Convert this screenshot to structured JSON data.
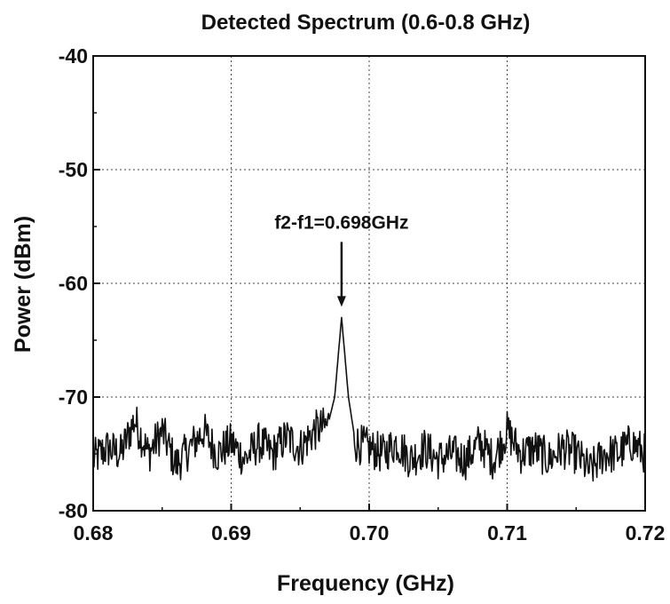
{
  "chart_data": {
    "type": "line",
    "title": "Detected Spectrum (0.6-0.8 GHz)",
    "xlabel": "Frequency (GHz)",
    "ylabel": "Power (dBm)",
    "xlim": [
      0.68,
      0.72
    ],
    "ylim": [
      -80,
      -40
    ],
    "x_ticks": [
      0.68,
      0.69,
      0.7,
      0.71,
      0.72
    ],
    "x_tick_labels": [
      "0.68",
      "0.69",
      "0.70",
      "0.71",
      "0.72"
    ],
    "y_ticks": [
      -80,
      -70,
      -60,
      -50,
      -40
    ],
    "y_tick_labels": [
      "-80",
      "-70",
      "-60",
      "-50",
      "-40"
    ],
    "grid": true,
    "grid_style": "dotted",
    "series": [
      {
        "color": "#111111",
        "noise_floor_dBm": -75,
        "peak": {
          "x": 0.698,
          "y": -63
        },
        "x": [
          0.68,
          0.681,
          0.682,
          0.683,
          0.684,
          0.685,
          0.686,
          0.687,
          0.688,
          0.689,
          0.69,
          0.691,
          0.692,
          0.693,
          0.694,
          0.695,
          0.696,
          0.697,
          0.6975,
          0.698,
          0.6985,
          0.699,
          0.7,
          0.701,
          0.702,
          0.703,
          0.704,
          0.705,
          0.706,
          0.707,
          0.708,
          0.709,
          0.71,
          0.711,
          0.712,
          0.713,
          0.714,
          0.715,
          0.716,
          0.717,
          0.718,
          0.719,
          0.72
        ],
        "y": [
          -75.5,
          -74.5,
          -75,
          -72,
          -75,
          -73,
          -76,
          -74.5,
          -73,
          -75,
          -74,
          -75.5,
          -74,
          -75,
          -73.5,
          -74.5,
          -73,
          -72.5,
          -70,
          -63,
          -70,
          -74,
          -74.5,
          -75,
          -74,
          -75.5,
          -74.5,
          -75.5,
          -75,
          -75.5,
          -74,
          -75.5,
          -73,
          -75,
          -74.5,
          -75.5,
          -74.5,
          -75,
          -76.5,
          -75,
          -75,
          -74,
          -75
        ]
      }
    ],
    "annotations": [
      {
        "text": "f2-f1=0.698GHz",
        "x": 0.698,
        "y": -63,
        "arrow": "down"
      }
    ]
  }
}
